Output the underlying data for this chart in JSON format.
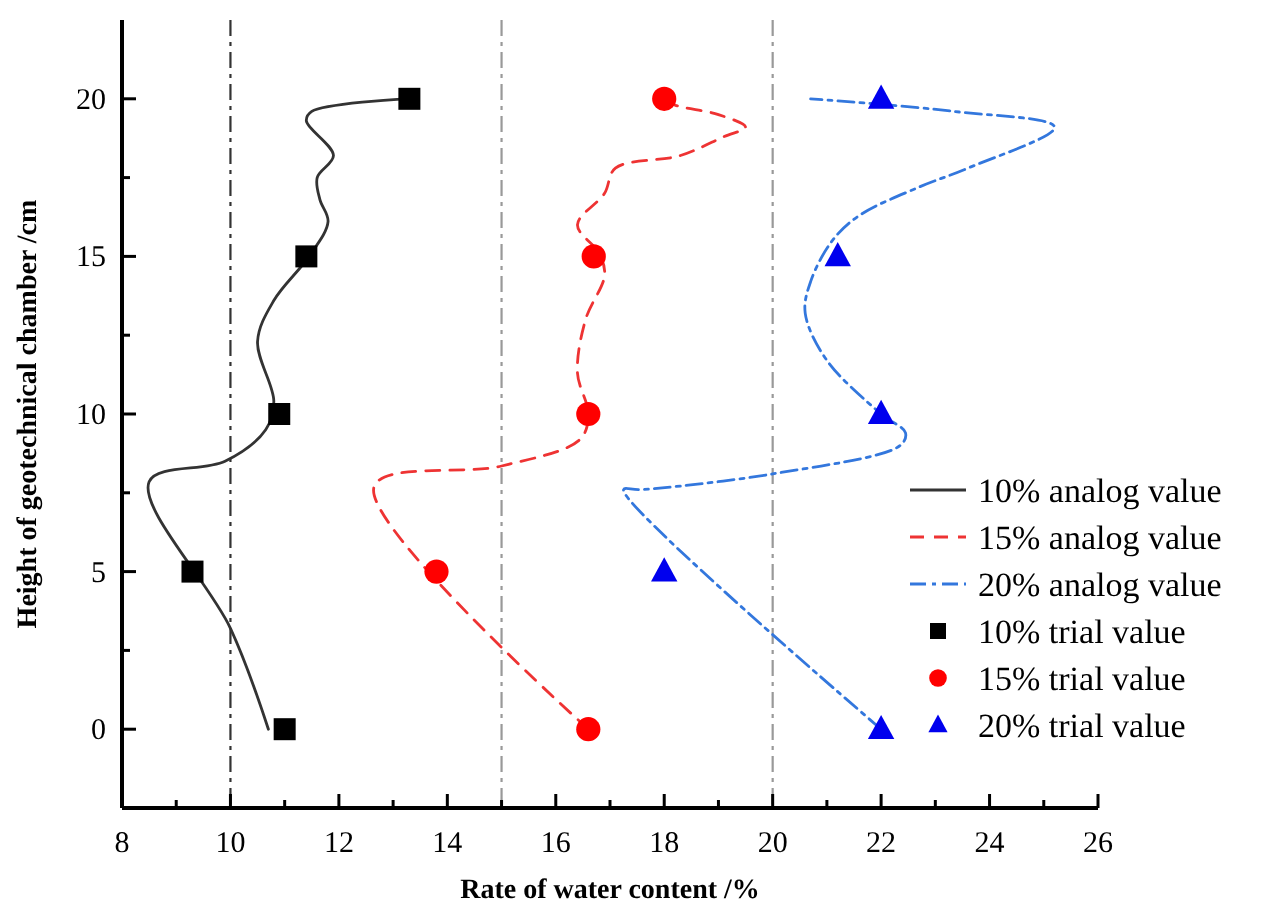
{
  "chart_data": {
    "type": "line",
    "xlabel": "Rate of water content /%",
    "ylabel": "Height of geotechnical chamber /cm",
    "xlim": [
      8,
      26
    ],
    "xticks": [
      8,
      {
        "value": 9,
        "label": null
      },
      10,
      {
        "value": 11,
        "label": null
      },
      12,
      {
        "value": 13,
        "label": null
      },
      14,
      {
        "value": 15,
        "label": null
      },
      16,
      {
        "value": 17,
        "label": null
      },
      18,
      {
        "value": 19,
        "label": null
      },
      20,
      {
        "value": 21,
        "label": null
      },
      22,
      {
        "value": 23,
        "label": null
      },
      24,
      {
        "value": 25,
        "label": null
      },
      26
    ],
    "ylim": [
      -2.5,
      22.5
    ],
    "yticks": [
      0,
      {
        "value": 2.5,
        "label": null
      },
      5,
      {
        "value": 7.5,
        "label": null
      },
      10,
      {
        "value": 12.5,
        "label": null
      },
      15,
      {
        "value": 17.5,
        "label": null
      },
      20
    ],
    "grid": false,
    "legend": "right",
    "ref_lines": [
      {
        "axis": "x",
        "value": 10,
        "color": "#333333",
        "line_style": "dashdot"
      },
      {
        "axis": "x",
        "value": 15,
        "color": "#999999",
        "line_style": "dashdot"
      },
      {
        "axis": "x",
        "value": 20,
        "color": "#999999",
        "line_style": "dashdot"
      }
    ],
    "series": [
      {
        "name": "10% analog value",
        "type": "line",
        "color": "#333333",
        "line_style": "solid",
        "marker": "none",
        "x": [
          10.7,
          10,
          8.5,
          9.9,
          10.65,
          10.8,
          10.5,
          10.8,
          11.45,
          11.8,
          11.65,
          11.6,
          11.9,
          11.4,
          11.5,
          13.2
        ],
        "values": [
          0,
          3.2,
          7.85,
          8.5,
          9.5,
          10.4,
          12.3,
          13.6,
          15,
          16.1,
          16.8,
          17.5,
          18.2,
          19.3,
          19.6,
          20
        ]
      },
      {
        "name": "15% analog value",
        "type": "line",
        "color": "#ee3333",
        "line_style": "dashed",
        "marker": "none",
        "x": [
          16.6,
          12.65,
          15,
          16.45,
          16.6,
          16.4,
          16.55,
          16.9,
          16.8,
          16.4,
          16.9,
          17.1,
          18.3,
          19.1,
          19.5,
          19,
          18.2,
          18
        ],
        "values": [
          0,
          7.7,
          8.35,
          9.2,
          10,
          11.3,
          13,
          14.4,
          15.1,
          16,
          17,
          17.8,
          18.2,
          18.8,
          19.1,
          19.5,
          19.8,
          20
        ]
      },
      {
        "name": "20% analog value",
        "type": "line",
        "color": "#3377dd",
        "line_style": "dashdot",
        "marker": "none",
        "x": [
          22,
          17.25,
          17.55,
          20,
          22.35,
          22.45,
          22,
          21,
          20.6,
          20.7,
          21.1,
          21.6,
          22.7,
          23.6,
          25.2,
          23.35,
          20.7
        ],
        "values": [
          0,
          7.6,
          7.6,
          8.1,
          9,
          9.4,
          10,
          11.7,
          13.2,
          14.2,
          15.5,
          16.3,
          17.2,
          17.8,
          19.1,
          19.6,
          20
        ]
      },
      {
        "name": "10% trial value",
        "type": "scatter",
        "color": "#000000",
        "marker": "square",
        "x": [
          11,
          9.3,
          10.9,
          11.4,
          13.3
        ],
        "values": [
          0,
          5,
          10,
          15,
          20
        ]
      },
      {
        "name": "15% trial value",
        "type": "scatter",
        "color": "#ff0000",
        "marker": "circle",
        "x": [
          16.6,
          13.8,
          16.6,
          16.7,
          18
        ],
        "values": [
          0,
          5,
          10,
          15,
          20
        ]
      },
      {
        "name": "20% trial value",
        "type": "scatter",
        "color": "#0000ee",
        "marker": "triangle",
        "x": [
          22,
          18,
          22,
          21.2,
          22
        ],
        "values": [
          0,
          5,
          10,
          15,
          20
        ]
      }
    ]
  }
}
